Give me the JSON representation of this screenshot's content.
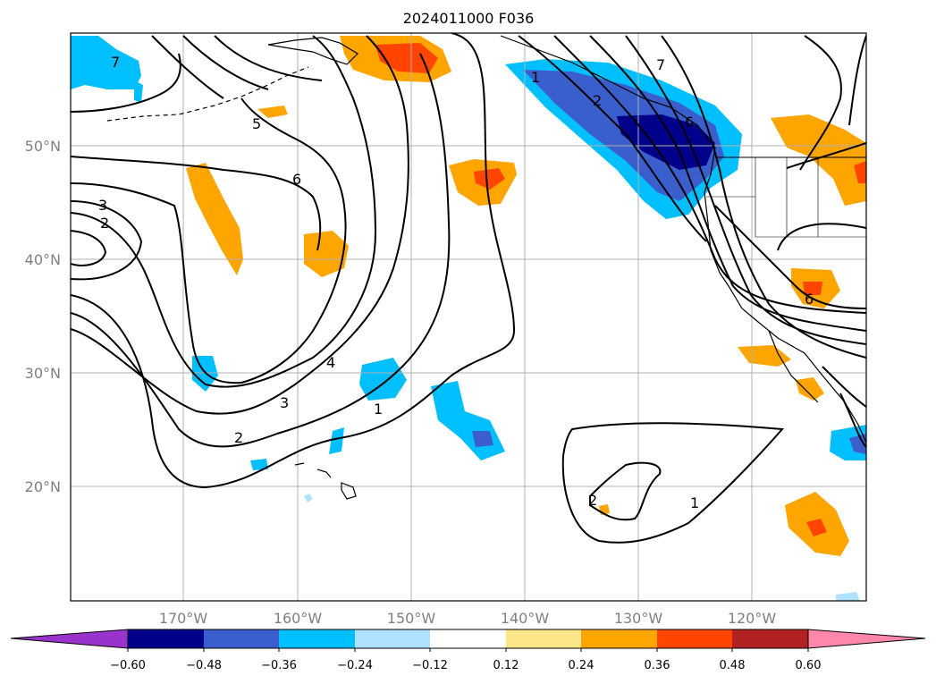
{
  "title": "2024011000 F036",
  "latitude_labels": [
    "50°N",
    "40°N",
    "30°N",
    "20°N"
  ],
  "longitude_labels": [
    "170°W",
    "160°W",
    "150°W",
    "140°W",
    "130°W",
    "120°W"
  ],
  "colorbar": {
    "tick_labels": [
      "−0.60",
      "−0.48",
      "−0.36",
      "−0.24",
      "−0.12",
      "0.12",
      "0.24",
      "0.36",
      "0.48",
      "0.60"
    ],
    "colors": [
      "#9933cc",
      "#00008b",
      "#3a5fcd",
      "#00bfff",
      "#b0e2ff",
      "#ffffff",
      "#fde68a",
      "#ffa500",
      "#ff4500",
      "#b22222",
      "#ff88aa"
    ],
    "extend": "both"
  },
  "contour_labels": [
    "7",
    "5",
    "6",
    "3",
    "2",
    "4",
    "3",
    "2",
    "1",
    "1",
    "7",
    "2",
    "6",
    "6",
    "2",
    "1"
  ],
  "colors": {
    "contour_line": "#000000",
    "coastline": "#000000",
    "gridline": "#b0b0b0"
  }
}
